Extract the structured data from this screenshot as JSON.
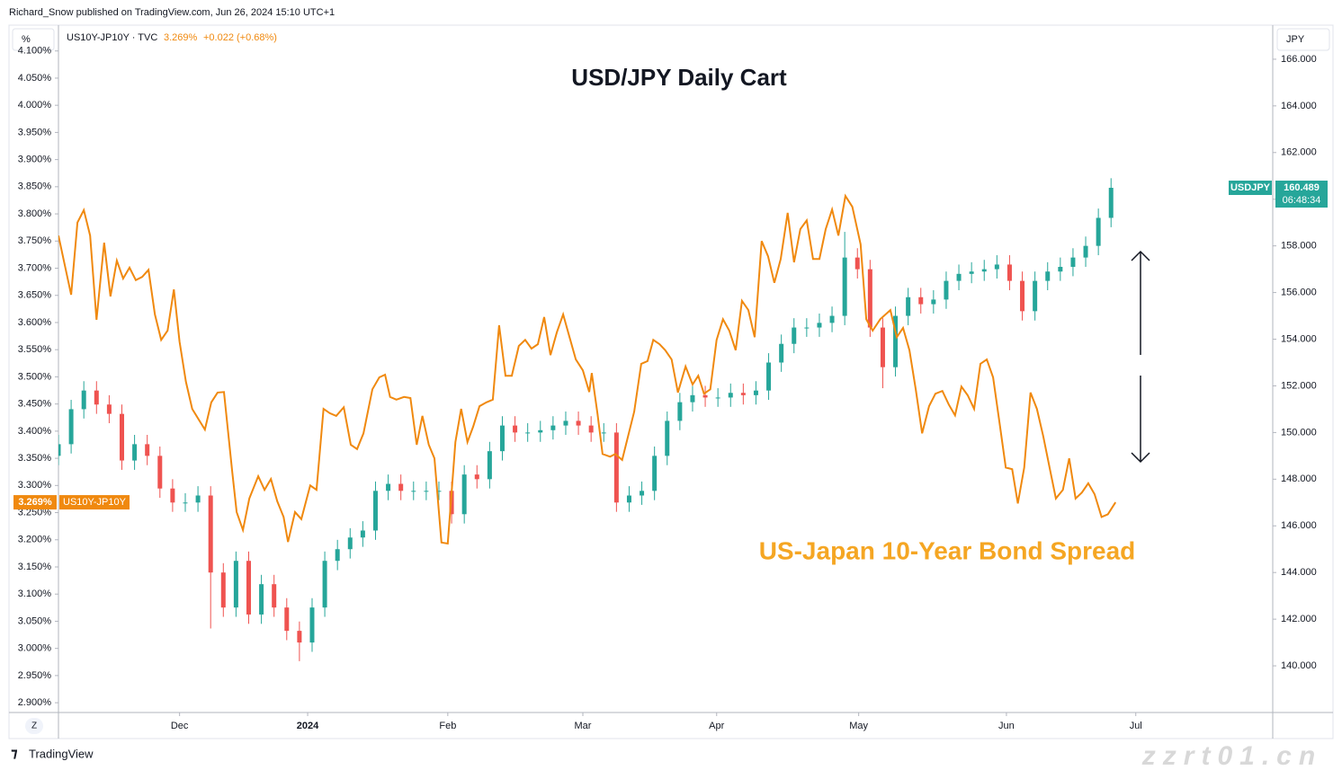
{
  "header": {
    "published": "Richard_Snow published on TradingView.com, Jun 26, 2024 15:10 UTC+1",
    "symbol": "US10Y-JP10Y · TVC",
    "last": "3.269%",
    "change": "+0.022 (+0.68%)",
    "left_unit": "%",
    "right_unit": "JPY"
  },
  "chart_data": {
    "type": "combo",
    "title": "USD/JPY Daily Cart",
    "annotation": "US-Japan 10-Year Bond Spread",
    "grid": false,
    "xlim": [
      0,
      191.5
    ],
    "xticks": [
      {
        "value": 19.1,
        "label": "Dec"
      },
      {
        "value": 39.3,
        "label": "2024"
      },
      {
        "value": 61.4,
        "label": "Feb"
      },
      {
        "value": 82.7,
        "label": "Mar"
      },
      {
        "value": 103.8,
        "label": "Apr"
      },
      {
        "value": 126.2,
        "label": "May"
      },
      {
        "value": 149.5,
        "label": "Jun"
      },
      {
        "value": 169.9,
        "label": "Jul"
      }
    ],
    "ylim": [
      2.882,
      4.1475
    ],
    "yticks": [
      {
        "value": 2.9,
        "label": "2.900%"
      },
      {
        "value": 2.95,
        "label": "2.950%"
      },
      {
        "value": 3.0,
        "label": "3.000%"
      },
      {
        "value": 3.05,
        "label": "3.050%"
      },
      {
        "value": 3.1,
        "label": "3.100%"
      },
      {
        "value": 3.15,
        "label": "3.150%"
      },
      {
        "value": 3.2,
        "label": "3.200%"
      },
      {
        "value": 3.25,
        "label": "3.250%"
      },
      {
        "value": 3.3,
        "label": "3.300%"
      },
      {
        "value": 3.35,
        "label": "3.350%"
      },
      {
        "value": 3.4,
        "label": "3.400%"
      },
      {
        "value": 3.45,
        "label": "3.450%"
      },
      {
        "value": 3.5,
        "label": "3.500%"
      },
      {
        "value": 3.55,
        "label": "3.550%"
      },
      {
        "value": 3.6,
        "label": "3.600%"
      },
      {
        "value": 3.65,
        "label": "3.650%"
      },
      {
        "value": 3.7,
        "label": "3.700%"
      },
      {
        "value": 3.75,
        "label": "3.750%"
      },
      {
        "value": 3.8,
        "label": "3.800%"
      },
      {
        "value": 3.85,
        "label": "3.850%"
      },
      {
        "value": 3.9,
        "label": "3.900%"
      },
      {
        "value": 3.95,
        "label": "3.950%"
      },
      {
        "value": 4.0,
        "label": "4.000%"
      },
      {
        "value": 4.05,
        "label": "4.050%"
      },
      {
        "value": 4.1,
        "label": "4.100%"
      }
    ],
    "y2lim": [
      138.0,
      167.46
    ],
    "y2ticks": [
      {
        "value": 140,
        "label": "140.000"
      },
      {
        "value": 142,
        "label": "142.000"
      },
      {
        "value": 144,
        "label": "144.000"
      },
      {
        "value": 146,
        "label": "146.000"
      },
      {
        "value": 148,
        "label": "148.000"
      },
      {
        "value": 150,
        "label": "150.000"
      },
      {
        "value": 152,
        "label": "152.000"
      },
      {
        "value": 154,
        "label": "154.000"
      },
      {
        "value": 156,
        "label": "156.000"
      },
      {
        "value": 158,
        "label": "158.000"
      },
      {
        "value": 160,
        "label": "160.000"
      },
      {
        "value": 162,
        "label": "162.000"
      },
      {
        "value": 164,
        "label": "164.000"
      },
      {
        "value": 166,
        "label": "166.000"
      }
    ],
    "series": [
      {
        "name": "US10Y-JP10Y",
        "type": "line",
        "axis": "y",
        "color": "#f0890f",
        "last_label": {
          "value": 3.269,
          "label": "3.269%"
        },
        "x": [
          0,
          1,
          2,
          3,
          4,
          5,
          6,
          7.2,
          8.2,
          9.2,
          10.2,
          11.2,
          12.2,
          13.2,
          14.2,
          15.2,
          16.2,
          17.2,
          18.2,
          19.1,
          20.1,
          21.1,
          23.1,
          24.1,
          25.1,
          26.1,
          27.4,
          28.1,
          29.1,
          30.1,
          31.5,
          32.5,
          33.5,
          34.5,
          35.5,
          36.2,
          37.3,
          38.3,
          39.7,
          40.7,
          41.8,
          42.8,
          43.8,
          45.0,
          46.1,
          47.1,
          48.1,
          49.5,
          50.6,
          51.5,
          52.3,
          53.3,
          54.5,
          55.5,
          56.5,
          57.4,
          58.4,
          59.3,
          60.4,
          61.4,
          62.6,
          63.5,
          64.5,
          65.4,
          66.4,
          67.5,
          68.5,
          69.5,
          70.5,
          71.5,
          72.6,
          73.6,
          74.6,
          75.6,
          76.6,
          77.6,
          78.6,
          79.6,
          80.6,
          81.6,
          82.7,
          83.7,
          84.1,
          85.0,
          85.8,
          87.0,
          87.8,
          88.9,
          90.8,
          91.9,
          92.9,
          93.8,
          94.8,
          95.7,
          96.7,
          97.7,
          98.9,
          100.0,
          100.9,
          101.8,
          102.8,
          103.8,
          104.8,
          105.8,
          106.8,
          107.8,
          108.8,
          109.8,
          110.9,
          111.9,
          112.9,
          113.9,
          115.0,
          116.0,
          117.0,
          118.0,
          119.0,
          120.0,
          121.0,
          122.0,
          123.0,
          124.1,
          125.2,
          126.5,
          127.4,
          128.4,
          129.6,
          131.2,
          132.2,
          133.2,
          134.2,
          135.2,
          136.2,
          137.3,
          138.3,
          139.4,
          140.4,
          141.4,
          142.4,
          143.4,
          144.4,
          145.4,
          146.4,
          147.4,
          148.4,
          149.4,
          150.4,
          151.3,
          152.3,
          153.3,
          154.3,
          155.3,
          156.3,
          157.3,
          158.4,
          159.4,
          160.4,
          161.4,
          162.4,
          163.4,
          164.5,
          165.5,
          166.7
        ],
        "values": [
          3.76,
          3.706,
          3.651,
          3.784,
          3.807,
          3.76,
          3.605,
          3.747,
          3.648,
          3.714,
          3.681,
          3.701,
          3.678,
          3.684,
          3.697,
          3.615,
          3.568,
          3.585,
          3.661,
          3.565,
          3.491,
          3.441,
          3.403,
          3.453,
          3.471,
          3.472,
          3.325,
          3.251,
          3.218,
          3.276,
          3.317,
          3.292,
          3.312,
          3.271,
          3.242,
          3.196,
          3.251,
          3.238,
          3.3,
          3.292,
          3.441,
          3.433,
          3.428,
          3.444,
          3.375,
          3.367,
          3.396,
          3.477,
          3.499,
          3.504,
          3.463,
          3.458,
          3.463,
          3.461,
          3.375,
          3.428,
          3.375,
          3.35,
          3.195,
          3.193,
          3.38,
          3.441,
          3.38,
          3.408,
          3.446,
          3.453,
          3.458,
          3.595,
          3.502,
          3.502,
          3.557,
          3.568,
          3.552,
          3.56,
          3.61,
          3.54,
          3.582,
          3.615,
          3.573,
          3.532,
          3.512,
          3.472,
          3.507,
          3.433,
          3.358,
          3.353,
          3.358,
          3.347,
          3.436,
          3.524,
          3.529,
          3.568,
          3.56,
          3.549,
          3.532,
          3.471,
          3.519,
          3.486,
          3.502,
          3.469,
          3.477,
          3.568,
          3.606,
          3.585,
          3.549,
          3.64,
          3.623,
          3.573,
          3.75,
          3.722,
          3.673,
          3.717,
          3.802,
          3.711,
          3.772,
          3.788,
          3.717,
          3.717,
          3.772,
          3.808,
          3.76,
          3.833,
          3.813,
          3.744,
          3.606,
          3.585,
          3.606,
          3.623,
          3.573,
          3.59,
          3.549,
          3.477,
          3.396,
          3.446,
          3.469,
          3.474,
          3.449,
          3.429,
          3.482,
          3.466,
          3.441,
          3.524,
          3.532,
          3.499,
          3.416,
          3.333,
          3.33,
          3.267,
          3.333,
          3.471,
          3.441,
          3.391,
          3.333,
          3.276,
          3.292,
          3.35,
          3.276,
          3.287,
          3.304,
          3.284,
          3.242,
          3.247,
          3.269
        ]
      },
      {
        "name": "USDJPY",
        "type": "candlestick",
        "axis": "y2",
        "up_color": "#26a69a",
        "down_color": "#ef5350",
        "last_price": 160.489,
        "countdown": "06:48:34",
        "x": [
          0,
          2,
          4,
          6,
          8,
          10,
          12,
          14,
          16,
          18,
          20,
          22,
          24,
          26,
          28,
          30,
          32,
          34,
          36,
          38,
          40,
          42,
          44,
          46,
          48,
          50,
          52,
          54,
          56,
          58,
          60,
          62,
          64,
          66,
          68,
          70,
          72,
          74,
          76,
          78,
          80,
          82,
          84,
          86,
          88,
          90,
          92,
          94,
          96,
          98,
          100,
          102,
          104,
          106,
          108,
          110,
          112,
          114,
          116,
          118,
          120,
          122,
          124,
          126,
          128,
          130,
          132,
          134,
          136,
          138,
          140,
          142,
          144,
          146,
          148,
          150,
          152,
          154,
          156,
          158,
          160,
          162,
          164,
          166
        ],
        "open": [
          149.0,
          149.5,
          151.0,
          151.8,
          151.2,
          150.8,
          148.8,
          149.5,
          149.0,
          147.6,
          147.0,
          147.0,
          147.3,
          144.0,
          142.5,
          144.5,
          142.2,
          143.5,
          142.5,
          141.5,
          141.0,
          142.5,
          144.5,
          145.0,
          145.5,
          145.8,
          147.5,
          147.8,
          147.5,
          147.5,
          147.5,
          147.5,
          146.5,
          148.2,
          148.0,
          149.2,
          150.3,
          150.0,
          150.0,
          150.1,
          150.3,
          150.5,
          150.3,
          150.0,
          150.0,
          147.0,
          147.3,
          147.5,
          149.0,
          150.5,
          151.3,
          151.6,
          151.5,
          151.5,
          151.7,
          151.6,
          151.8,
          153.0,
          153.8,
          154.5,
          154.5,
          154.7,
          155.0,
          157.5,
          157.0,
          154.5,
          152.8,
          155.0,
          155.8,
          155.5,
          155.7,
          156.5,
          156.8,
          156.9,
          157.0,
          157.2,
          156.5,
          155.2,
          156.5,
          156.9,
          157.1,
          157.5,
          158.0,
          159.2
        ],
        "high": [
          149.9,
          151.4,
          152.2,
          152.2,
          151.6,
          151.2,
          149.9,
          149.9,
          149.4,
          148.0,
          147.4,
          147.7,
          147.7,
          144.4,
          144.9,
          144.9,
          143.9,
          143.9,
          142.9,
          141.9,
          142.9,
          144.9,
          145.4,
          145.9,
          146.2,
          147.9,
          148.2,
          148.2,
          147.9,
          147.9,
          147.9,
          147.9,
          148.6,
          148.6,
          149.6,
          150.7,
          150.7,
          150.4,
          150.5,
          150.7,
          150.9,
          150.9,
          150.7,
          150.4,
          150.4,
          147.7,
          147.9,
          149.4,
          150.9,
          151.7,
          152.0,
          152.0,
          151.9,
          152.1,
          152.1,
          152.2,
          153.4,
          154.2,
          154.9,
          154.9,
          155.1,
          155.4,
          158.6,
          157.9,
          157.4,
          154.9,
          155.4,
          156.2,
          156.2,
          156.1,
          156.9,
          157.2,
          157.3,
          157.4,
          157.6,
          157.6,
          156.9,
          156.9,
          157.3,
          157.5,
          157.9,
          158.4,
          159.6,
          160.9
        ],
        "low": [
          148.6,
          149.1,
          150.6,
          150.8,
          150.4,
          148.4,
          148.4,
          148.6,
          147.2,
          146.6,
          146.6,
          146.6,
          141.6,
          142.1,
          142.1,
          141.8,
          141.8,
          142.1,
          141.1,
          140.2,
          140.6,
          142.1,
          144.1,
          144.6,
          145.1,
          145.4,
          147.1,
          147.1,
          147.1,
          147.1,
          147.1,
          146.1,
          146.1,
          147.6,
          147.6,
          148.8,
          149.6,
          149.6,
          149.6,
          149.7,
          149.9,
          149.9,
          149.6,
          149.6,
          146.6,
          146.6,
          146.9,
          147.1,
          148.6,
          150.1,
          150.9,
          151.1,
          151.1,
          151.1,
          151.2,
          151.2,
          151.4,
          152.6,
          153.4,
          154.1,
          154.1,
          154.3,
          154.6,
          156.6,
          154.1,
          151.9,
          152.4,
          154.6,
          155.1,
          155.1,
          155.3,
          156.1,
          156.4,
          156.5,
          156.6,
          156.1,
          154.8,
          154.8,
          156.1,
          156.5,
          156.7,
          157.1,
          157.6,
          158.8
        ],
        "close": [
          149.5,
          151.0,
          151.8,
          151.2,
          150.8,
          148.8,
          149.5,
          149.0,
          147.6,
          147.0,
          147.0,
          147.3,
          144.0,
          142.5,
          144.5,
          142.2,
          143.5,
          142.5,
          141.5,
          141.0,
          142.5,
          144.5,
          145.0,
          145.5,
          145.8,
          147.5,
          147.8,
          147.5,
          147.5,
          147.5,
          147.5,
          146.5,
          148.2,
          148.0,
          149.2,
          150.3,
          150.0,
          150.0,
          150.1,
          150.3,
          150.5,
          150.3,
          150.0,
          150.0,
          147.0,
          147.3,
          147.5,
          149.0,
          150.5,
          151.3,
          151.6,
          151.5,
          151.5,
          151.7,
          151.6,
          151.8,
          153.0,
          153.8,
          154.5,
          154.5,
          154.7,
          155.0,
          157.5,
          157.0,
          154.5,
          152.8,
          155.0,
          155.8,
          155.5,
          155.7,
          156.5,
          156.8,
          156.9,
          157.0,
          157.2,
          156.5,
          155.2,
          156.5,
          156.9,
          157.1,
          157.5,
          158.0,
          159.2,
          160.489
        ]
      }
    ]
  },
  "footer": {
    "brand": "TradingView",
    "zoom_button": "Z",
    "watermark": "zzrt01.cn"
  }
}
